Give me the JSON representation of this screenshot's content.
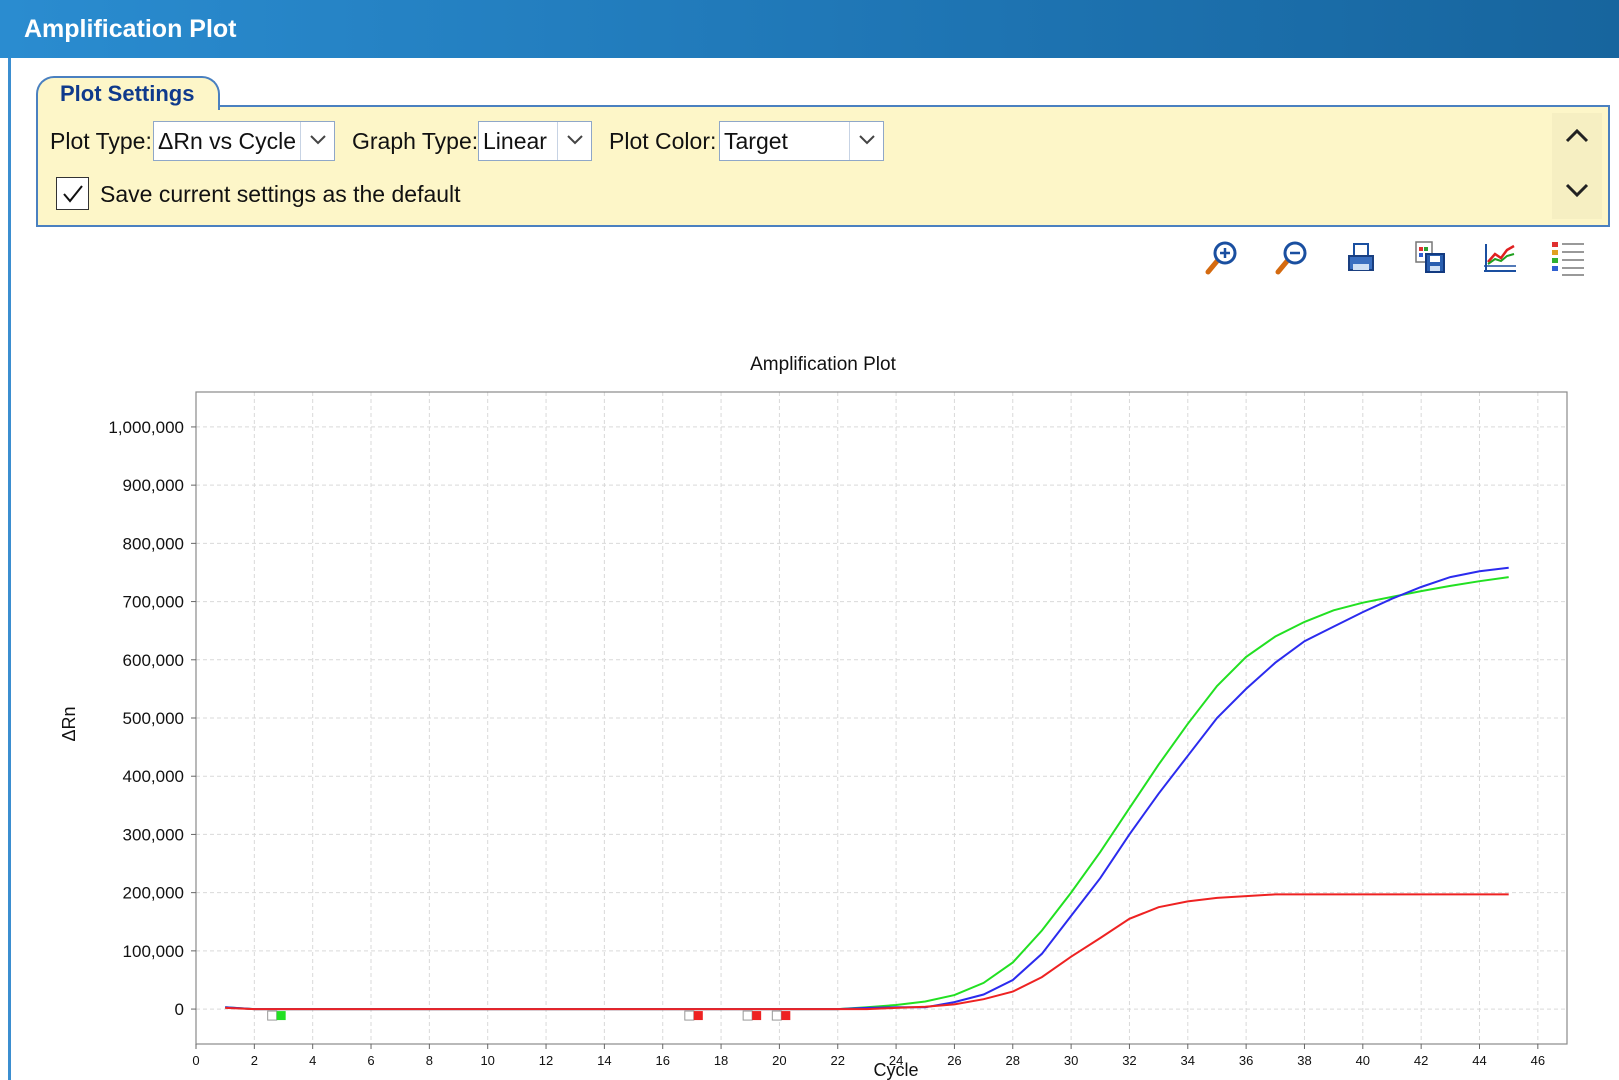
{
  "window": {
    "title": "Amplification Plot"
  },
  "plot_settings": {
    "tab_label": "Plot Settings",
    "plot_type_label": "Plot Type:",
    "plot_type_value": "ΔRn vs Cycle",
    "graph_type_label": "Graph Type:",
    "graph_type_value": "Linear",
    "plot_color_label": "Plot Color:",
    "plot_color_value": "Target",
    "save_default_label": "Save current settings as the default",
    "save_default_checked": true
  },
  "toolbar": {
    "icons": [
      "zoom-in-icon",
      "zoom-out-icon",
      "print-icon",
      "save-image-icon",
      "plot-options-icon",
      "legend-icon"
    ]
  },
  "chart_data": {
    "type": "line",
    "title": "Amplification Plot",
    "xlabel": "Cycle",
    "ylabel": "ΔRn",
    "xlim": [
      0,
      47
    ],
    "ylim": [
      -60000,
      1060000
    ],
    "x_ticks": [
      0,
      2,
      4,
      6,
      8,
      10,
      12,
      14,
      16,
      18,
      20,
      22,
      24,
      26,
      28,
      30,
      32,
      34,
      36,
      38,
      40,
      42,
      44,
      46
    ],
    "y_ticks": [
      0,
      100000,
      200000,
      300000,
      400000,
      500000,
      600000,
      700000,
      800000,
      900000,
      1000000
    ],
    "y_tick_labels": [
      "0",
      "100,000",
      "200,000",
      "300,000",
      "400,000",
      "500,000",
      "600,000",
      "700,000",
      "800,000",
      "900,000",
      "1,000,000"
    ],
    "grid": true,
    "x": [
      1,
      2,
      3,
      4,
      5,
      6,
      7,
      8,
      9,
      10,
      11,
      12,
      13,
      14,
      15,
      16,
      17,
      18,
      19,
      20,
      21,
      22,
      23,
      24,
      25,
      26,
      27,
      28,
      29,
      30,
      31,
      32,
      33,
      34,
      35,
      36,
      37,
      38,
      39,
      40,
      41,
      42,
      43,
      44,
      45
    ],
    "series": [
      {
        "color": "#22e022",
        "values": [
          3000,
          0,
          0,
          0,
          0,
          0,
          0,
          0,
          0,
          0,
          0,
          0,
          0,
          0,
          0,
          0,
          0,
          0,
          0,
          0,
          0,
          0,
          3000,
          7000,
          13000,
          24000,
          45000,
          80000,
          135000,
          200000,
          270000,
          345000,
          420000,
          490000,
          555000,
          605000,
          640000,
          665000,
          685000,
          698000,
          708000,
          718000,
          727000,
          735000,
          742000
        ]
      },
      {
        "color": "#2b2bee",
        "values": [
          3000,
          0,
          0,
          0,
          0,
          0,
          0,
          0,
          0,
          0,
          0,
          0,
          0,
          0,
          0,
          0,
          0,
          0,
          0,
          0,
          0,
          0,
          2000,
          3000,
          3000,
          12000,
          25000,
          50000,
          95000,
          160000,
          225000,
          300000,
          370000,
          435000,
          500000,
          550000,
          595000,
          632000,
          657000,
          682000,
          705000,
          725000,
          742000,
          752000,
          758000
        ]
      },
      {
        "color": "#ee2222",
        "values": [
          2000,
          0,
          0,
          0,
          0,
          0,
          0,
          0,
          0,
          0,
          0,
          0,
          0,
          0,
          0,
          0,
          0,
          0,
          0,
          0,
          0,
          0,
          0,
          2000,
          4000,
          8000,
          17000,
          30000,
          55000,
          90000,
          122000,
          155000,
          175000,
          185000,
          191000,
          194000,
          197000,
          197000,
          197000,
          197000,
          197000,
          197000,
          197000,
          197000,
          197000
        ]
      }
    ],
    "markers": [
      {
        "x": 2.8,
        "color": "#22e022"
      },
      {
        "x": 17.1,
        "color": "#ee2222"
      },
      {
        "x": 19.1,
        "color": "#ee2222"
      },
      {
        "x": 20.1,
        "color": "#ee2222"
      }
    ]
  }
}
